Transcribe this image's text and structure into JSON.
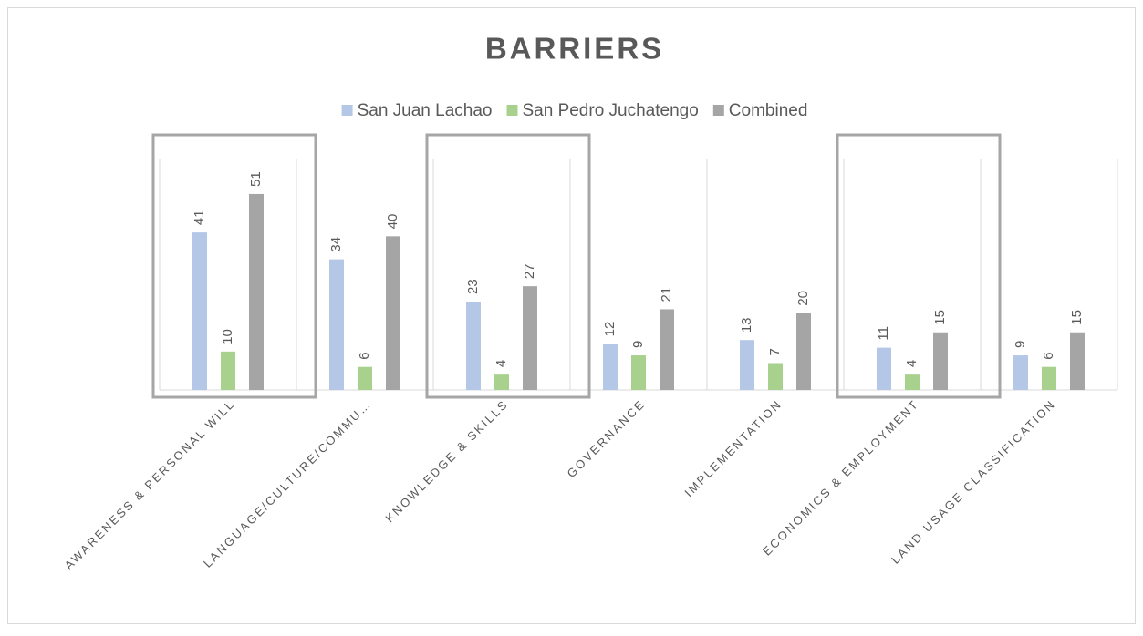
{
  "chart_data": {
    "type": "bar",
    "title": "BARRIERS",
    "categories": [
      "AWARENESS & PERSONAL WILL",
      "LANGUAGE/CULTURE/COMMU…",
      "KNOWLEDGE & SKILLS",
      "GOVERNANCE",
      "IMPLEMENTATION",
      "ECONOMICS & EMPLOYMENT",
      "LAND USAGE CLASSIFICATION"
    ],
    "series": [
      {
        "name": "San Juan Lachao",
        "color": "#b4c7e7",
        "values": [
          41,
          34,
          23,
          12,
          13,
          11,
          9
        ]
      },
      {
        "name": "San Pedro Juchatengo",
        "color": "#a9d18e",
        "values": [
          10,
          6,
          4,
          9,
          7,
          4,
          6
        ]
      },
      {
        "name": "Combined",
        "color": "#a5a5a5",
        "values": [
          51,
          40,
          27,
          21,
          20,
          15,
          15
        ]
      }
    ],
    "ylim": [
      0,
      60
    ],
    "legend": "top"
  }
}
